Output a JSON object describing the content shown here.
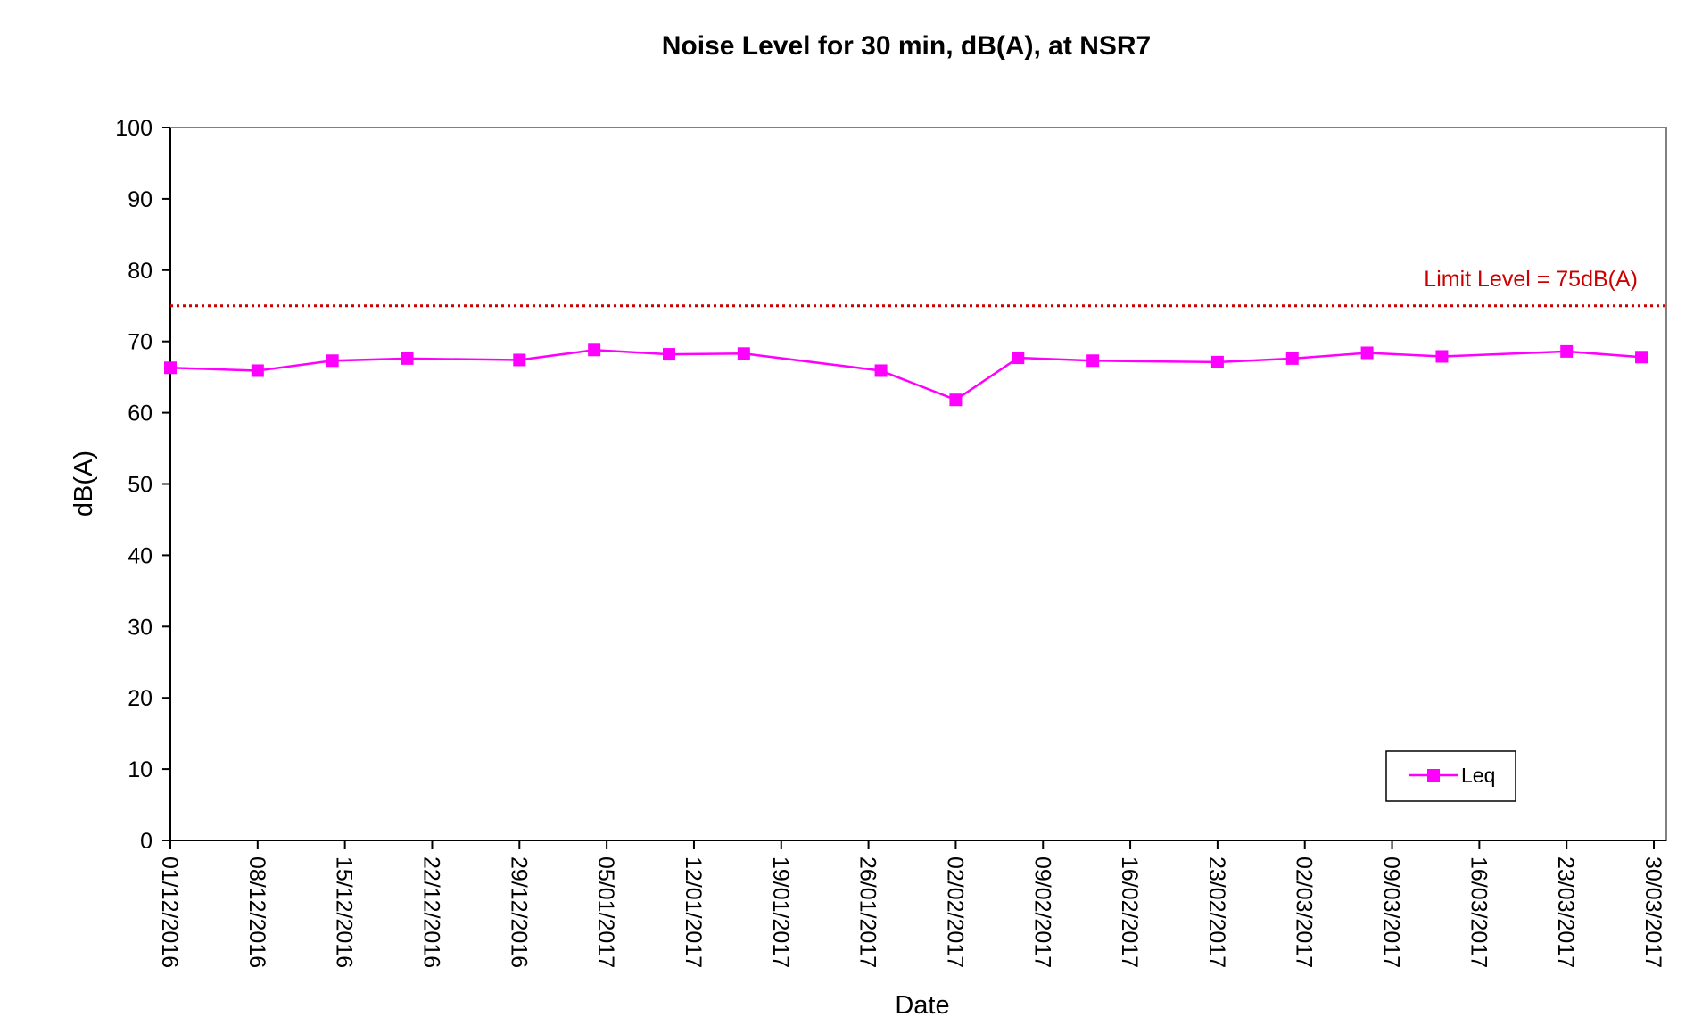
{
  "chart_data": {
    "type": "line",
    "title": "Noise Level for 30 min, dB(A), at NSR7",
    "xlabel": "Date",
    "ylabel": "dB(A)",
    "ylim": [
      0,
      100
    ],
    "yticks": [
      0,
      10,
      20,
      30,
      40,
      50,
      60,
      70,
      80,
      90,
      100
    ],
    "xlim": [
      "2016-12-01",
      "2017-03-31"
    ],
    "xticks": [
      "01/12/2016",
      "08/12/2016",
      "15/12/2016",
      "22/12/2016",
      "29/12/2016",
      "05/01/2017",
      "12/01/2017",
      "19/01/2017",
      "26/01/2017",
      "02/02/2017",
      "09/02/2017",
      "16/02/2017",
      "23/02/2017",
      "02/03/2017",
      "09/03/2017",
      "16/03/2017",
      "23/03/2017",
      "30/03/2017"
    ],
    "grid": false,
    "legend_position": "bottom-right",
    "series": [
      {
        "name": "Leq",
        "color": "#FF00FF",
        "marker": "square",
        "points": [
          {
            "x": "2016-12-01",
            "y": 66.3
          },
          {
            "x": "2016-12-08",
            "y": 65.9
          },
          {
            "x": "2016-12-14",
            "y": 67.3
          },
          {
            "x": "2016-12-20",
            "y": 67.6
          },
          {
            "x": "2016-12-29",
            "y": 67.4
          },
          {
            "x": "2017-01-04",
            "y": 68.8
          },
          {
            "x": "2017-01-10",
            "y": 68.2
          },
          {
            "x": "2017-01-16",
            "y": 68.3
          },
          {
            "x": "2017-01-27",
            "y": 65.9
          },
          {
            "x": "2017-02-02",
            "y": 61.8
          },
          {
            "x": "2017-02-07",
            "y": 67.7
          },
          {
            "x": "2017-02-13",
            "y": 67.3
          },
          {
            "x": "2017-02-23",
            "y": 67.1
          },
          {
            "x": "2017-03-01",
            "y": 67.6
          },
          {
            "x": "2017-03-07",
            "y": 68.4
          },
          {
            "x": "2017-03-13",
            "y": 67.9
          },
          {
            "x": "2017-03-23",
            "y": 68.6
          },
          {
            "x": "2017-03-29",
            "y": 67.8
          }
        ]
      }
    ],
    "reference_line": {
      "value": 75,
      "label": "Limit Level = 75dB(A)",
      "color": "#CC0000",
      "style": "dotted"
    }
  }
}
